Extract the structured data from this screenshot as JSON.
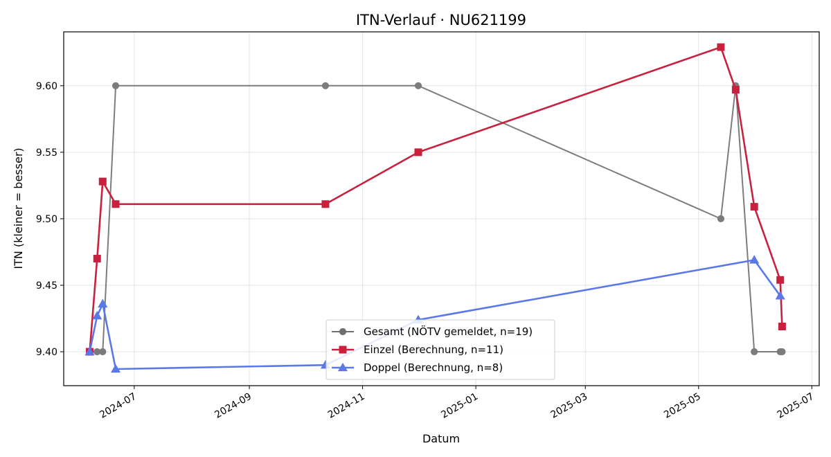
{
  "chart_data": {
    "type": "line",
    "title": "ITN-Verlauf · NU621199",
    "xlabel": "Datum",
    "ylabel": "ITN  (kleiner = besser)",
    "x_type": "date",
    "xlim": [
      "2024-05-24",
      "2025-07-05"
    ],
    "ylim": [
      9.3745,
      9.6405
    ],
    "x_ticks": [
      "2024-07-01",
      "2024-09-01",
      "2024-11-01",
      "2025-01-01",
      "2025-03-01",
      "2025-05-01",
      "2025-07-01"
    ],
    "x_tick_labels": [
      "2024-07",
      "2024-09",
      "2024-11",
      "2025-01",
      "2025-03",
      "2025-05",
      "2025-07"
    ],
    "y_ticks": [
      9.4,
      9.45,
      9.5,
      9.55,
      9.6
    ],
    "y_tick_labels": [
      "9.40",
      "9.45",
      "9.50",
      "9.55",
      "9.60"
    ],
    "grid": true,
    "legend_position": "lower center",
    "series": [
      {
        "name": "Gesamt (NÖTV gemeldet, n=19)",
        "color": "#6e6e6e",
        "marker": "circle",
        "x": [
          "2024-06-07",
          "2024-06-11",
          "2024-06-14",
          "2024-06-21",
          "2024-10-12",
          "2024-12-01",
          "2025-05-13",
          "2025-05-21",
          "2025-05-31",
          "2025-06-14",
          "2025-06-15"
        ],
        "y": [
          9.4,
          9.4,
          9.4,
          9.6,
          9.6,
          9.6,
          9.5,
          9.6,
          9.4,
          9.4,
          9.4
        ]
      },
      {
        "name": "Einzel (Berechnung, n=11)",
        "color": "#c8203d",
        "marker": "square",
        "x": [
          "2024-06-07",
          "2024-06-11",
          "2024-06-14",
          "2024-06-21",
          "2024-10-12",
          "2024-12-01",
          "2025-05-13",
          "2025-05-21",
          "2025-05-31",
          "2025-06-14",
          "2025-06-15"
        ],
        "y": [
          9.4,
          9.47,
          9.528,
          9.511,
          9.511,
          9.55,
          9.629,
          9.597,
          9.509,
          9.454,
          9.419
        ]
      },
      {
        "name": "Doppel (Berechnung, n=8)",
        "color": "#5a78e8",
        "marker": "triangle",
        "x": [
          "2024-06-07",
          "2024-06-11",
          "2024-06-14",
          "2024-06-21",
          "2024-10-12",
          "2024-12-01",
          "2025-05-31",
          "2025-06-14"
        ],
        "y": [
          9.4,
          9.427,
          9.436,
          9.387,
          9.39,
          9.424,
          9.469,
          9.442
        ]
      }
    ]
  }
}
